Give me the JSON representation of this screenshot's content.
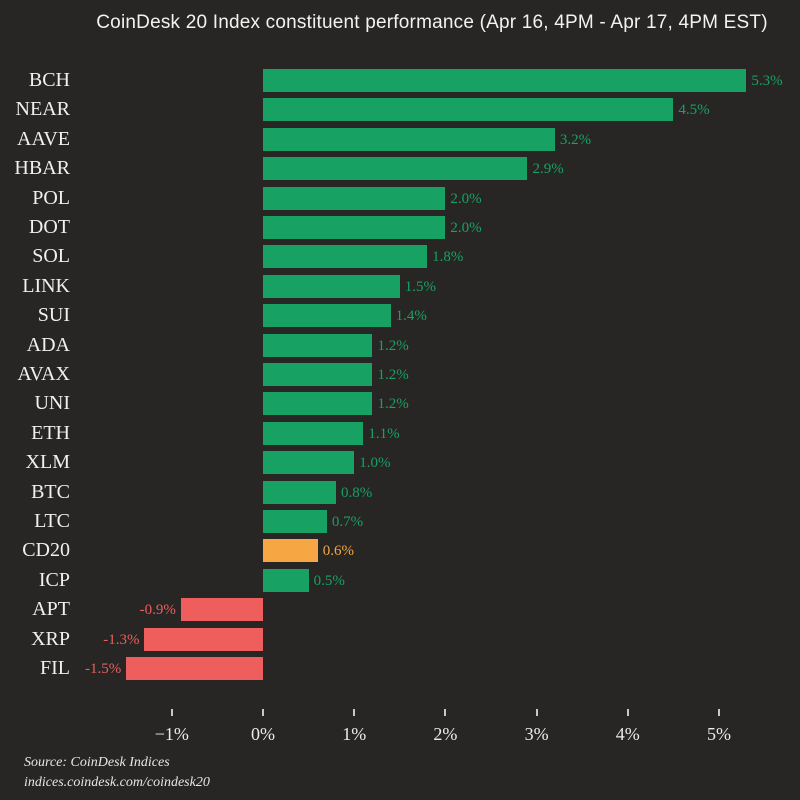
{
  "title": "CoinDesk 20 Index constituent performance (Apr 16, 4PM - Apr 17, 4PM EST)",
  "source": {
    "line1": "Source: CoinDesk Indices",
    "line2": "indices.coindesk.com/coindesk20"
  },
  "colors": {
    "background": "#272624",
    "positive": "#17a163",
    "negative": "#ed5e5c",
    "highlight": "#f6a642",
    "label_text": "#f1f0ee",
    "tick_text": "#ecebe9"
  },
  "chart_data": {
    "type": "bar",
    "orientation": "horizontal",
    "title": "CoinDesk 20 Index constituent performance (Apr 16, 4PM - Apr 17, 4PM EST)",
    "categories": [
      "BCH",
      "NEAR",
      "AAVE",
      "HBAR",
      "POL",
      "DOT",
      "SOL",
      "LINK",
      "SUI",
      "ADA",
      "AVAX",
      "UNI",
      "ETH",
      "XLM",
      "BTC",
      "LTC",
      "CD20",
      "ICP",
      "APT",
      "XRP",
      "FIL"
    ],
    "values": [
      5.3,
      4.5,
      3.2,
      2.9,
      2.0,
      2.0,
      1.8,
      1.5,
      1.4,
      1.2,
      1.2,
      1.2,
      1.1,
      1.0,
      0.8,
      0.7,
      0.6,
      0.5,
      -0.9,
      -1.3,
      -1.5
    ],
    "value_labels": [
      "5.3%",
      "4.5%",
      "3.2%",
      "2.9%",
      "2.0%",
      "2.0%",
      "1.8%",
      "1.5%",
      "1.4%",
      "1.2%",
      "1.2%",
      "1.2%",
      "1.1%",
      "1.0%",
      "0.8%",
      "0.7%",
      "0.6%",
      "0.5%",
      "-0.9%",
      "-1.3%",
      "-1.5%"
    ],
    "highlight_category": "CD20",
    "tick_values": [
      -1,
      0,
      1,
      2,
      3,
      4,
      5
    ],
    "tick_labels": [
      "−1%",
      "0%",
      "1%",
      "2%",
      "3%",
      "4%",
      "5%"
    ],
    "xlabel": "",
    "ylabel": "",
    "xlim": [
      -1.9,
      5.9
    ],
    "grid": false,
    "legend": false
  }
}
